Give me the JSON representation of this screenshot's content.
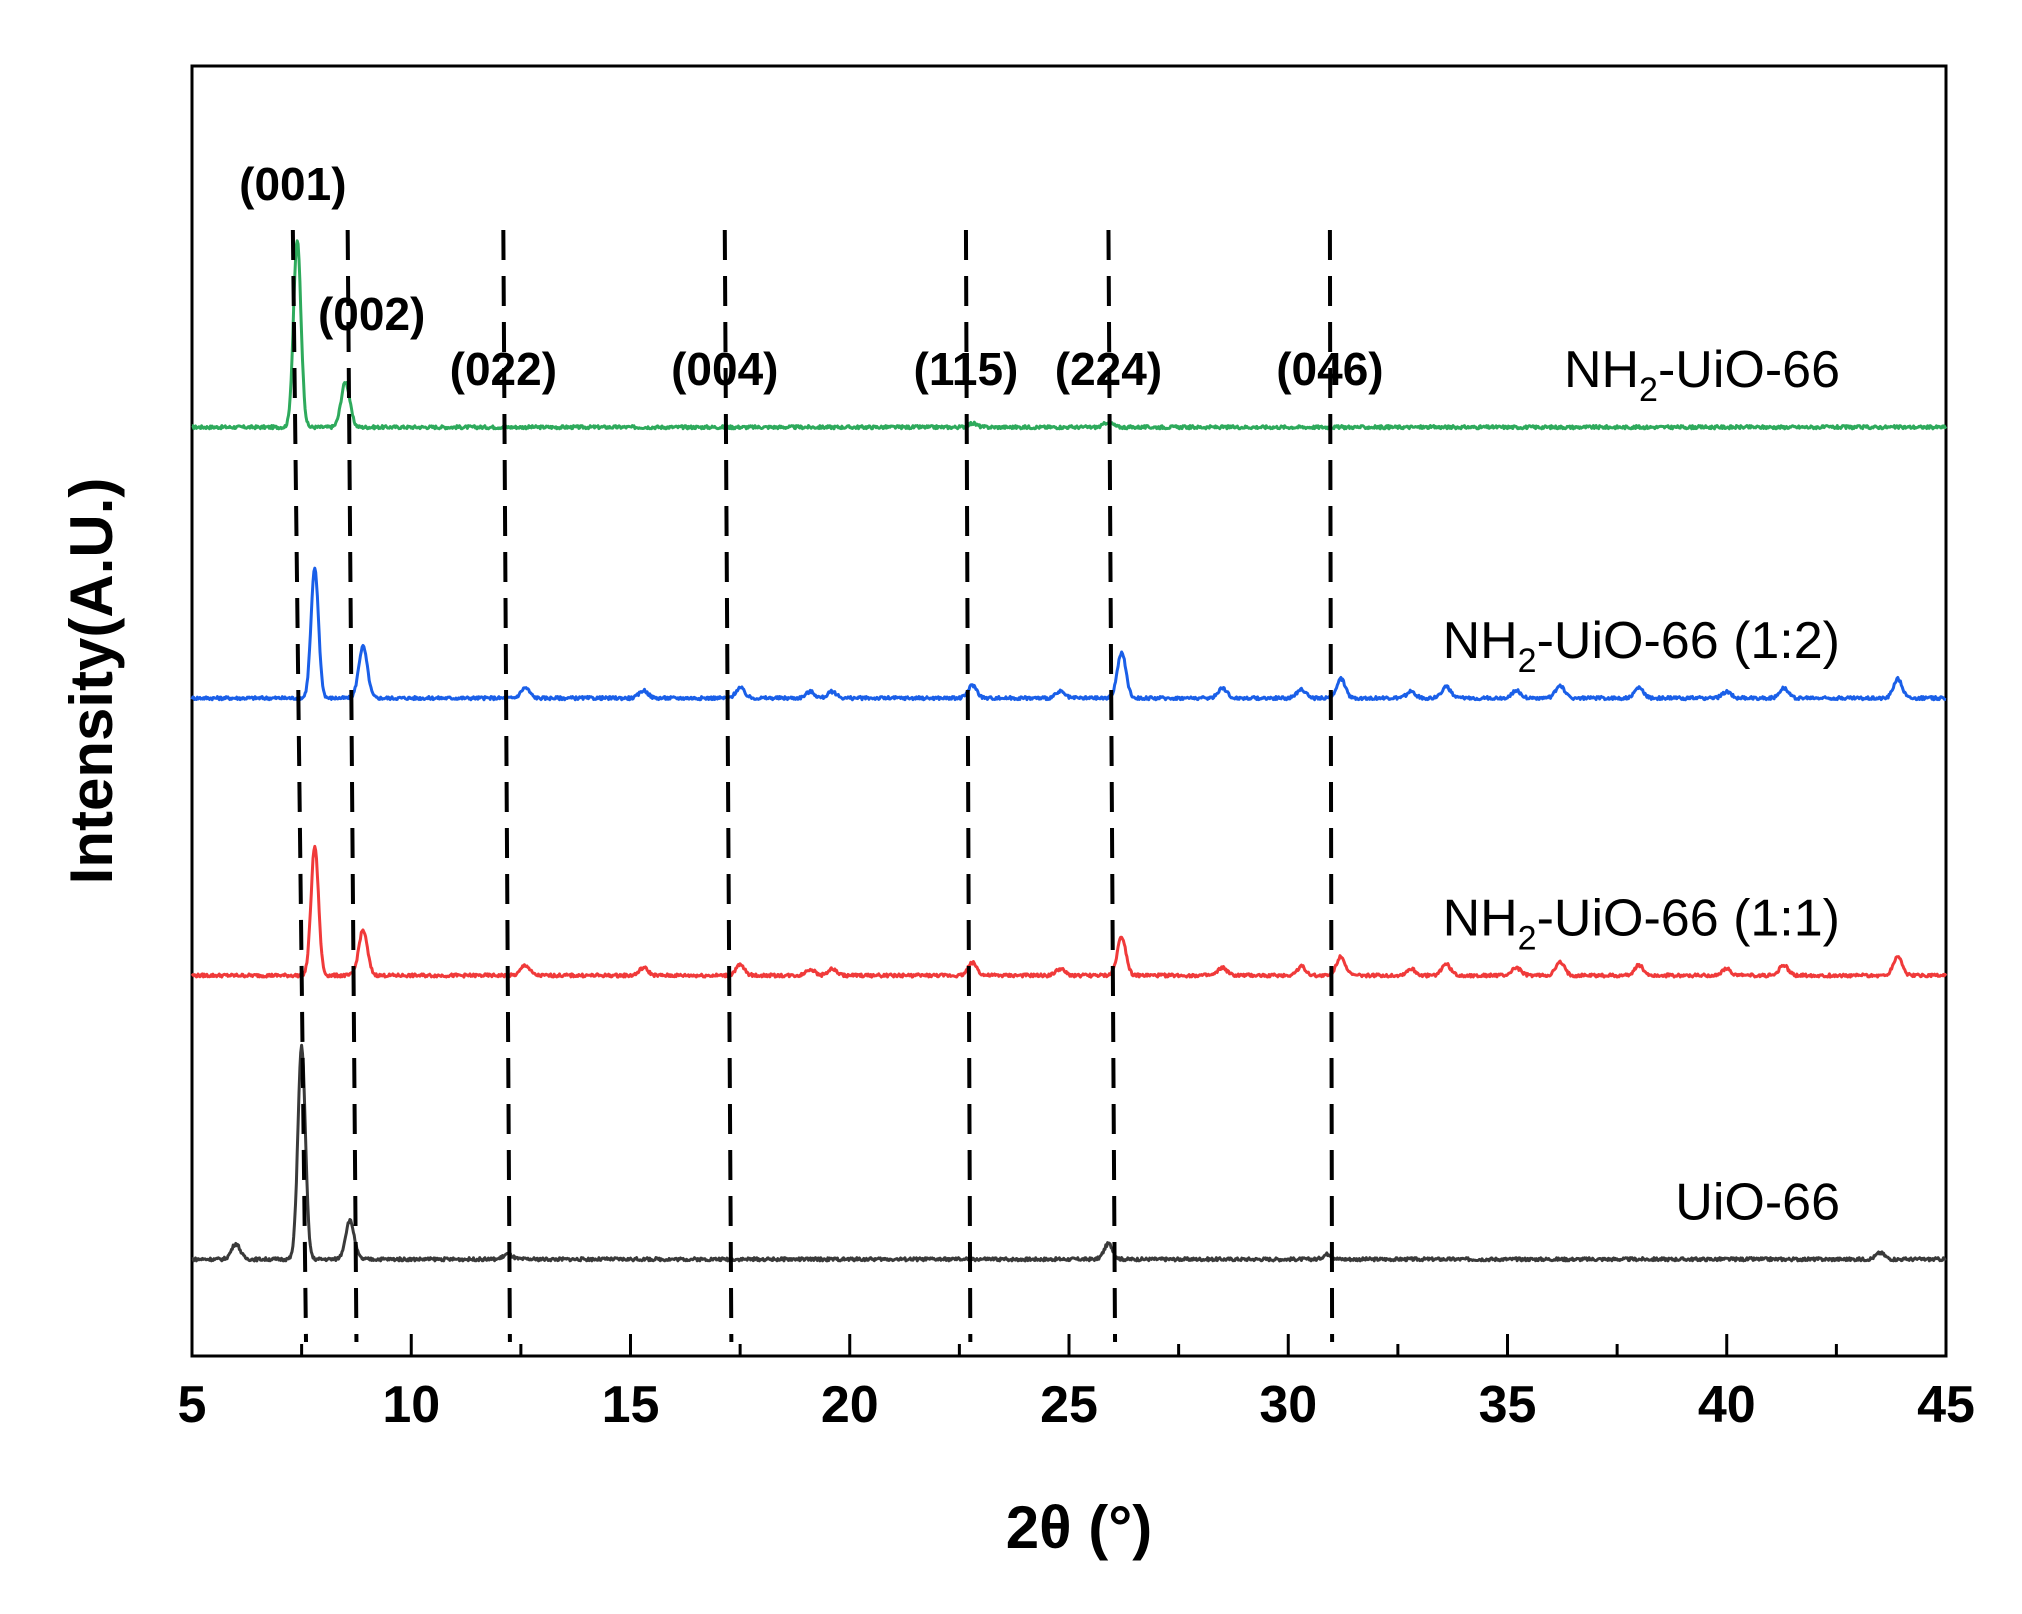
{
  "chart_data": {
    "type": "line",
    "title": "",
    "xlabel": "2θ (°)",
    "ylabel": "Intensity(A.U.)",
    "xlim": [
      5,
      45
    ],
    "xticks": [
      5,
      10,
      15,
      20,
      25,
      30,
      35,
      40,
      45
    ],
    "xtick_labels": [
      "5",
      "10",
      "15",
      "20",
      "25",
      "30",
      "35",
      "40",
      "45"
    ],
    "y_ticks_shown": false,
    "grid": false,
    "series": [
      {
        "name": "NH2-UiO-66",
        "label_main": "NH",
        "label_sub": "2",
        "label_rest": "-UiO-66",
        "color": "#2eaa5c",
        "baseline": 0.72,
        "peaks": [
          [
            7.4,
            0.145
          ],
          [
            8.5,
            0.035
          ],
          [
            25.9,
            0.004
          ],
          [
            22.8,
            0.003
          ]
        ]
      },
      {
        "name": "NH2-UiO-66 (1:2)",
        "label_main": "NH",
        "label_sub": "2",
        "label_rest": "-UiO-66 (1:2)",
        "color": "#1a5fe8",
        "baseline": 0.51,
        "peaks": [
          [
            7.8,
            0.1
          ],
          [
            8.9,
            0.04
          ],
          [
            12.6,
            0.008
          ],
          [
            15.3,
            0.006
          ],
          [
            17.5,
            0.008
          ],
          [
            19.1,
            0.005
          ],
          [
            19.6,
            0.005
          ],
          [
            22.8,
            0.01
          ],
          [
            24.8,
            0.005
          ],
          [
            26.2,
            0.035
          ],
          [
            28.5,
            0.008
          ],
          [
            30.3,
            0.007
          ],
          [
            31.2,
            0.015
          ],
          [
            32.8,
            0.005
          ],
          [
            33.6,
            0.009
          ],
          [
            35.2,
            0.006
          ],
          [
            36.2,
            0.01
          ],
          [
            38.0,
            0.008
          ],
          [
            40.0,
            0.005
          ],
          [
            41.3,
            0.008
          ],
          [
            43.9,
            0.015
          ]
        ]
      },
      {
        "name": "NH2-UiO-66 (1:1)",
        "label_main": "NH",
        "label_sub": "2",
        "label_rest": "-UiO-66 (1:1)",
        "color": "#f03a3a",
        "baseline": 0.295,
        "peaks": [
          [
            7.8,
            0.1
          ],
          [
            8.9,
            0.035
          ],
          [
            12.6,
            0.008
          ],
          [
            15.3,
            0.006
          ],
          [
            17.5,
            0.008
          ],
          [
            19.1,
            0.005
          ],
          [
            19.6,
            0.005
          ],
          [
            22.8,
            0.01
          ],
          [
            24.8,
            0.005
          ],
          [
            26.2,
            0.03
          ],
          [
            28.5,
            0.006
          ],
          [
            30.3,
            0.007
          ],
          [
            31.2,
            0.015
          ],
          [
            32.8,
            0.005
          ],
          [
            33.6,
            0.009
          ],
          [
            35.2,
            0.006
          ],
          [
            36.2,
            0.01
          ],
          [
            38.0,
            0.008
          ],
          [
            40.0,
            0.005
          ],
          [
            41.3,
            0.008
          ],
          [
            43.9,
            0.015
          ]
        ]
      },
      {
        "name": "UiO-66",
        "label_main": "UiO-66",
        "label_sub": "",
        "label_rest": "",
        "color": "#3a3a3a",
        "baseline": 0.075,
        "peaks": [
          [
            6.0,
            0.012
          ],
          [
            7.5,
            0.165
          ],
          [
            8.6,
            0.03
          ],
          [
            12.2,
            0.004
          ],
          [
            25.9,
            0.012
          ],
          [
            30.9,
            0.004
          ],
          [
            43.5,
            0.005
          ]
        ]
      }
    ],
    "annotations": [
      {
        "label": "(001)",
        "x_top": 7.3,
        "x_bottom": 7.6
      },
      {
        "label": "(002)",
        "x_top": 8.55,
        "x_bottom": 8.75
      },
      {
        "label": "(022)",
        "x_top": 12.1,
        "x_bottom": 12.25
      },
      {
        "label": "(004)",
        "x_top": 17.15,
        "x_bottom": 17.3
      },
      {
        "label": "(115)",
        "x_top": 22.65,
        "x_bottom": 22.75
      },
      {
        "label": "(224)",
        "x_top": 25.9,
        "x_bottom": 26.05
      },
      {
        "label": "(046)",
        "x_top": 30.95,
        "x_bottom": 31.0
      }
    ]
  }
}
